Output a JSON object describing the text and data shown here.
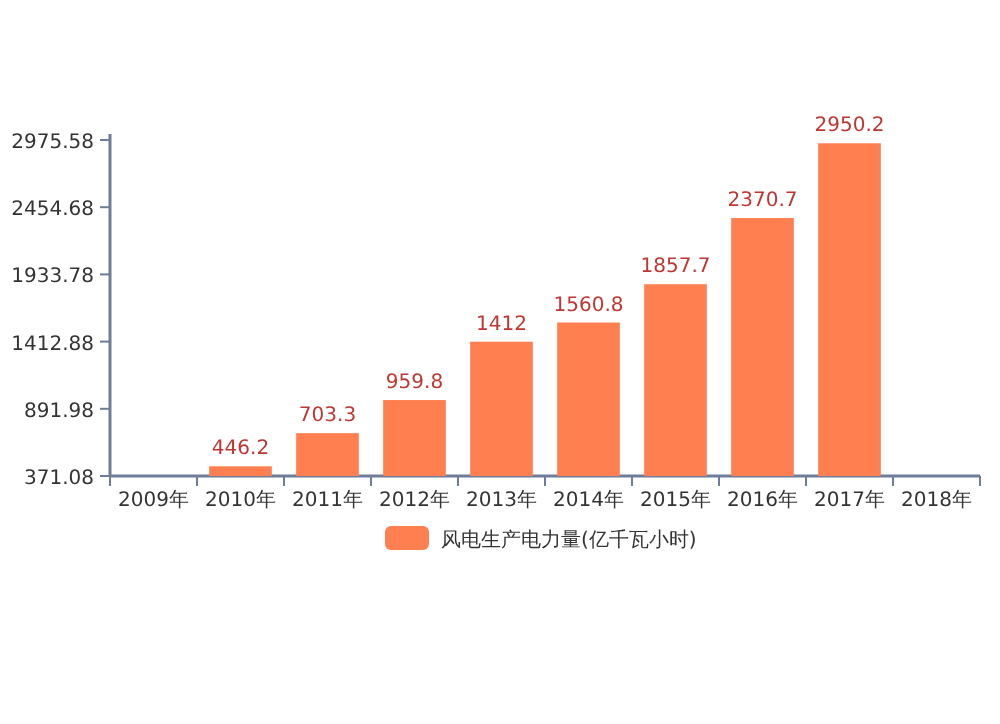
{
  "chart_data": {
    "type": "bar",
    "categories": [
      "2009年",
      "2010年",
      "2011年",
      "2012年",
      "2013年",
      "2014年",
      "2015年",
      "2016年",
      "2017年",
      "2018年"
    ],
    "series": [
      {
        "name": "风电生产电力量(亿千瓦小时)",
        "color": "#ff7f50",
        "values": [
          null,
          446.2,
          703.3,
          959.8,
          1412,
          1560.8,
          1857.7,
          2370.7,
          2950.2,
          null
        ]
      }
    ],
    "ylim": [
      371.08,
      2975.58
    ],
    "yticks": [
      371.08,
      891.98,
      1412.88,
      1933.78,
      2454.68,
      2975.58
    ],
    "data_labels": true,
    "legend": "bottom",
    "grid": false
  }
}
